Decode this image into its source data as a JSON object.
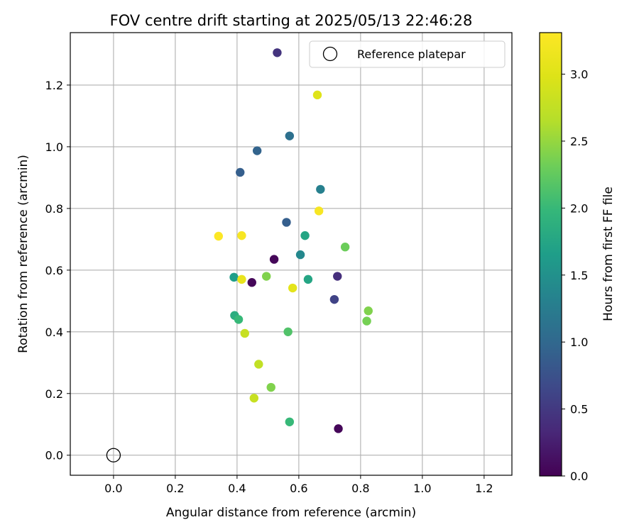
{
  "chart_data": {
    "type": "scatter",
    "title": "FOV centre drift starting at 2025/05/13 22:46:28",
    "xlabel": "Angular distance from reference (arcmin)",
    "ylabel": "Rotation from reference (arcmin)",
    "xlim": [
      -0.14,
      1.29
    ],
    "ylim": [
      -0.065,
      1.37
    ],
    "xticks": [
      "0.0",
      "0.2",
      "0.4",
      "0.6",
      "0.8",
      "1.0",
      "1.2"
    ],
    "yticks": [
      "0.0",
      "0.2",
      "0.4",
      "0.6",
      "0.8",
      "1.0",
      "1.2"
    ],
    "grid": true,
    "legend": {
      "placement": "top-right",
      "entries": [
        "Reference platepar"
      ]
    },
    "reference_point": {
      "x": 0.0,
      "y": 0.0,
      "label": "Reference platepar"
    },
    "colorbar": {
      "label": "Hours from first FF file",
      "range": [
        0.0,
        3.31
      ],
      "ticks": [
        "0.0",
        "0.5",
        "1.0",
        "1.5",
        "2.0",
        "2.5",
        "3.0"
      ],
      "colormap": "viridis"
    },
    "points": [
      {
        "x": 0.53,
        "y": 1.305,
        "c": 0.45
      },
      {
        "x": 0.66,
        "y": 1.168,
        "c": 3.0
      },
      {
        "x": 0.57,
        "y": 1.035,
        "c": 1.1
      },
      {
        "x": 0.465,
        "y": 0.987,
        "c": 0.95
      },
      {
        "x": 0.41,
        "y": 0.917,
        "c": 0.9
      },
      {
        "x": 0.67,
        "y": 0.862,
        "c": 1.3
      },
      {
        "x": 0.665,
        "y": 0.792,
        "c": 3.25
      },
      {
        "x": 0.56,
        "y": 0.755,
        "c": 0.9
      },
      {
        "x": 0.34,
        "y": 0.71,
        "c": 3.3
      },
      {
        "x": 0.415,
        "y": 0.712,
        "c": 3.25
      },
      {
        "x": 0.62,
        "y": 0.712,
        "c": 1.75
      },
      {
        "x": 0.75,
        "y": 0.675,
        "c": 2.3
      },
      {
        "x": 0.605,
        "y": 0.65,
        "c": 1.4
      },
      {
        "x": 0.52,
        "y": 0.635,
        "c": 0.05
      },
      {
        "x": 0.39,
        "y": 0.577,
        "c": 1.65
      },
      {
        "x": 0.415,
        "y": 0.57,
        "c": 3.1
      },
      {
        "x": 0.495,
        "y": 0.58,
        "c": 2.4
      },
      {
        "x": 0.725,
        "y": 0.58,
        "c": 0.4
      },
      {
        "x": 0.63,
        "y": 0.57,
        "c": 1.75
      },
      {
        "x": 0.448,
        "y": 0.56,
        "c": 0.05
      },
      {
        "x": 0.58,
        "y": 0.542,
        "c": 3.05
      },
      {
        "x": 0.715,
        "y": 0.505,
        "c": 0.6
      },
      {
        "x": 0.825,
        "y": 0.468,
        "c": 2.4
      },
      {
        "x": 0.82,
        "y": 0.435,
        "c": 2.35
      },
      {
        "x": 0.392,
        "y": 0.453,
        "c": 1.85
      },
      {
        "x": 0.405,
        "y": 0.44,
        "c": 2.0
      },
      {
        "x": 0.565,
        "y": 0.4,
        "c": 2.15
      },
      {
        "x": 0.425,
        "y": 0.395,
        "c": 2.8
      },
      {
        "x": 0.47,
        "y": 0.295,
        "c": 2.75
      },
      {
        "x": 0.51,
        "y": 0.22,
        "c": 2.4
      },
      {
        "x": 0.455,
        "y": 0.185,
        "c": 2.8
      },
      {
        "x": 0.57,
        "y": 0.108,
        "c": 2.0
      },
      {
        "x": 0.728,
        "y": 0.086,
        "c": 0.05
      }
    ]
  }
}
